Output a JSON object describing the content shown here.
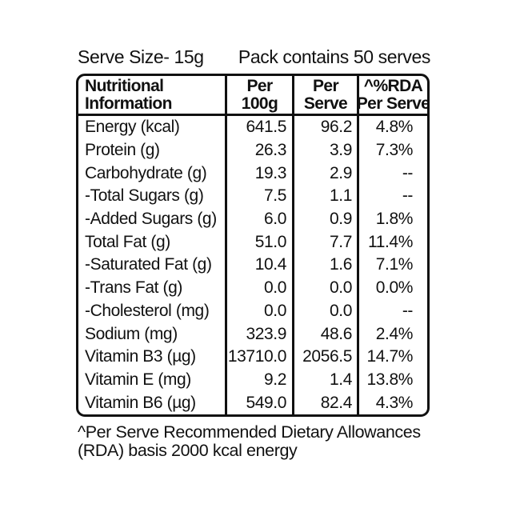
{
  "top": {
    "serve_size": "Serve Size- 15g",
    "pack_contains": "Pack contains 50 serves"
  },
  "table": {
    "header": {
      "col1": [
        "Nutritional",
        "Information"
      ],
      "col2": [
        "Per",
        "100g"
      ],
      "col3": [
        "Per",
        "Serve"
      ],
      "col4": [
        "^%RDA",
        "Per Serve"
      ]
    },
    "rows": [
      {
        "label": "Energy (kcal)",
        "per_100g": "641.5",
        "per_serve": "96.2",
        "rda": "4.8%"
      },
      {
        "label": "Protein (g)",
        "per_100g": "26.3",
        "per_serve": "3.9",
        "rda": "7.3%"
      },
      {
        "label": "Carbohydrate (g)",
        "per_100g": "19.3",
        "per_serve": "2.9",
        "rda": "--"
      },
      {
        "label": "-Total Sugars (g)",
        "per_100g": "7.5",
        "per_serve": "1.1",
        "rda": "--"
      },
      {
        "label": "-Added Sugars (g)",
        "per_100g": "6.0",
        "per_serve": "0.9",
        "rda": "1.8%"
      },
      {
        "label": "Total Fat (g)",
        "per_100g": "51.0",
        "per_serve": "7.7",
        "rda": "11.4%"
      },
      {
        "label": "-Saturated Fat (g)",
        "per_100g": "10.4",
        "per_serve": "1.6",
        "rda": "7.1%"
      },
      {
        "label": "-Trans Fat (g)",
        "per_100g": "0.0",
        "per_serve": "0.0",
        "rda": "0.0%"
      },
      {
        "label": "-Cholesterol (mg)",
        "per_100g": "0.0",
        "per_serve": "0.0",
        "rda": "--"
      },
      {
        "label": "Sodium (mg)",
        "per_100g": "323.9",
        "per_serve": "48.6",
        "rda": "2.4%"
      },
      {
        "label": "Vitamin B3 (µg)",
        "per_100g": "13710.0",
        "per_serve": "2056.5",
        "rda": "14.7%"
      },
      {
        "label": "Vitamin E (mg)",
        "per_100g": "9.2",
        "per_serve": "1.4",
        "rda": "13.8%"
      },
      {
        "label": "Vitamin B6 (µg)",
        "per_100g": "549.0",
        "per_serve": "82.4",
        "rda": "4.3%"
      }
    ]
  },
  "footnote": {
    "line1": "^Per Serve Recommended Dietary Allowances",
    "line2": "(RDA) basis 2000 kcal energy"
  },
  "colors": {
    "text": "#111111",
    "border": "#111111",
    "background": "#ffffff"
  }
}
